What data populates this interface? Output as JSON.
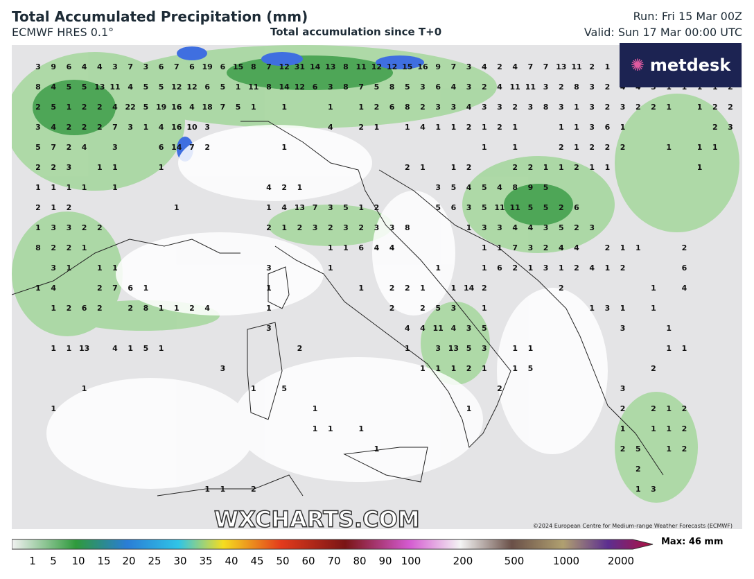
{
  "header": {
    "title": "Total Accumulated Precipitation (mm)",
    "model": "ECMWF HRES 0.1°",
    "subtitle": "Total accumulation since T+0",
    "run": "Run: Fri 15 Mar 00Z",
    "valid": "Valid: Sun 17 Mar 00:00 UTC"
  },
  "logo": "metdesk",
  "watermark": "WXCHARTS.COM",
  "copyright": "©2024 European Centre for Medium-range Weather Forecasts (ECMWF)",
  "legend": {
    "max": "Max: 46 mm",
    "ticks": [
      1,
      5,
      10,
      15,
      20,
      25,
      30,
      35,
      40,
      45,
      50,
      60,
      70,
      80,
      90,
      100,
      200,
      500,
      1000,
      2000
    ]
  },
  "grid_labels": [
    [
      3,
      9,
      6,
      4,
      4,
      3,
      7,
      3,
      6,
      7,
      6,
      19,
      6,
      15,
      8,
      7,
      12,
      31,
      14,
      13,
      8,
      11,
      12,
      12,
      15,
      16,
      9,
      7,
      3,
      4,
      2,
      4,
      7,
      7,
      13,
      11,
      2,
      1,
      1
    ],
    [
      8,
      4,
      5,
      5,
      13,
      11,
      4,
      5,
      5,
      12,
      12,
      6,
      5,
      1,
      11,
      8,
      14,
      12,
      6,
      3,
      8,
      7,
      5,
      8,
      5,
      3,
      6,
      4,
      3,
      2,
      4,
      11,
      11,
      3,
      2,
      8,
      3,
      2,
      4,
      4,
      3,
      1,
      1,
      1,
      1,
      2
    ],
    [
      2,
      5,
      1,
      2,
      2,
      4,
      22,
      5,
      19,
      16,
      4,
      18,
      7,
      5,
      1,
      null,
      1,
      null,
      null,
      1,
      null,
      1,
      2,
      6,
      8,
      2,
      3,
      3,
      4,
      3,
      3,
      2,
      3,
      8,
      3,
      1,
      3,
      2,
      3,
      2,
      2,
      1,
      null,
      1,
      2,
      2
    ],
    [
      3,
      4,
      2,
      2,
      2,
      7,
      3,
      1,
      4,
      16,
      10,
      3,
      null,
      null,
      null,
      null,
      null,
      null,
      null,
      4,
      null,
      2,
      1,
      null,
      1,
      4,
      1,
      1,
      2,
      1,
      2,
      1,
      null,
      null,
      1,
      1,
      3,
      6,
      1,
      null,
      null,
      null,
      null,
      null,
      2,
      3
    ],
    [
      5,
      7,
      2,
      4,
      null,
      3,
      null,
      null,
      6,
      14,
      7,
      2,
      null,
      null,
      null,
      null,
      1,
      null,
      null,
      null,
      null,
      null,
      null,
      null,
      null,
      null,
      null,
      null,
      null,
      1,
      null,
      1,
      null,
      null,
      2,
      1,
      2,
      2,
      2,
      null,
      null,
      1,
      null,
      1,
      1
    ],
    [
      2,
      2,
      3,
      null,
      1,
      1,
      null,
      null,
      1,
      null,
      null,
      null,
      null,
      null,
      null,
      null,
      null,
      null,
      null,
      null,
      null,
      null,
      null,
      null,
      2,
      1,
      null,
      1,
      2,
      null,
      null,
      2,
      2,
      1,
      1,
      2,
      1,
      1,
      null,
      null,
      null,
      null,
      null,
      1
    ],
    [
      1,
      1,
      1,
      1,
      null,
      1,
      null,
      null,
      null,
      null,
      null,
      null,
      null,
      null,
      null,
      4,
      2,
      1,
      null,
      null,
      null,
      null,
      null,
      null,
      null,
      null,
      3,
      5,
      4,
      5,
      4,
      8,
      9,
      5
    ],
    [
      2,
      1,
      2,
      null,
      null,
      null,
      null,
      null,
      null,
      1,
      null,
      null,
      null,
      null,
      null,
      1,
      4,
      13,
      7,
      3,
      5,
      1,
      2,
      null,
      null,
      null,
      5,
      6,
      3,
      5,
      11,
      11,
      5,
      5,
      2,
      6
    ],
    [
      1,
      3,
      3,
      2,
      2,
      null,
      null,
      null,
      null,
      null,
      null,
      null,
      null,
      null,
      null,
      2,
      1,
      2,
      3,
      2,
      3,
      2,
      3,
      3,
      8,
      null,
      null,
      null,
      1,
      3,
      3,
      4,
      4,
      3,
      5,
      2,
      3
    ],
    [
      8,
      2,
      2,
      1,
      null,
      null,
      null,
      null,
      null,
      null,
      null,
      null,
      null,
      null,
      null,
      null,
      null,
      null,
      null,
      1,
      1,
      6,
      4,
      4,
      null,
      null,
      null,
      null,
      null,
      1,
      1,
      7,
      3,
      2,
      4,
      4,
      null,
      2,
      1,
      1,
      null,
      null,
      2
    ],
    [
      null,
      3,
      1,
      null,
      1,
      1,
      null,
      null,
      null,
      null,
      null,
      null,
      null,
      null,
      null,
      3,
      null,
      null,
      null,
      1,
      null,
      null,
      null,
      null,
      null,
      null,
      1,
      null,
      null,
      1,
      6,
      2,
      1,
      3,
      1,
      2,
      4,
      1,
      2,
      null,
      null,
      null,
      6
    ],
    [
      1,
      4,
      null,
      null,
      2,
      7,
      6,
      1,
      null,
      null,
      null,
      null,
      null,
      null,
      null,
      1,
      null,
      null,
      null,
      null,
      null,
      1,
      null,
      2,
      2,
      1,
      null,
      1,
      14,
      2,
      null,
      null,
      null,
      null,
      2,
      null,
      null,
      null,
      null,
      null,
      1,
      null,
      4
    ],
    [
      null,
      1,
      2,
      6,
      2,
      null,
      2,
      8,
      1,
      1,
      2,
      4,
      null,
      null,
      null,
      1,
      null,
      null,
      null,
      null,
      null,
      null,
      null,
      2,
      null,
      2,
      5,
      3,
      null,
      1,
      null,
      null,
      null,
      null,
      null,
      null,
      1,
      3,
      1,
      null,
      1
    ],
    [
      null,
      null,
      null,
      null,
      null,
      null,
      null,
      null,
      null,
      null,
      null,
      null,
      null,
      null,
      null,
      3,
      null,
      null,
      null,
      null,
      null,
      null,
      null,
      null,
      4,
      4,
      11,
      4,
      3,
      5,
      null,
      null,
      null,
      null,
      null,
      null,
      null,
      null,
      3,
      null,
      null,
      1
    ],
    [
      null,
      1,
      1,
      13,
      null,
      4,
      1,
      5,
      1,
      null,
      null,
      null,
      null,
      null,
      null,
      null,
      null,
      2,
      null,
      null,
      null,
      null,
      null,
      null,
      1,
      null,
      3,
      13,
      5,
      3,
      null,
      1,
      1,
      null,
      null,
      null,
      null,
      null,
      null,
      null,
      null,
      1,
      1
    ],
    [
      null,
      null,
      null,
      null,
      null,
      null,
      null,
      null,
      null,
      null,
      null,
      null,
      3,
      null,
      null,
      null,
      null,
      null,
      null,
      null,
      null,
      null,
      null,
      null,
      null,
      1,
      1,
      1,
      2,
      1,
      null,
      1,
      5,
      null,
      null,
      null,
      null,
      null,
      null,
      null,
      2
    ],
    [
      null,
      null,
      null,
      1,
      null,
      null,
      null,
      null,
      null,
      null,
      null,
      null,
      null,
      null,
      1,
      null,
      5,
      null,
      null,
      null,
      null,
      null,
      null,
      null,
      null,
      null,
      null,
      null,
      null,
      null,
      2,
      null,
      null,
      null,
      null,
      null,
      null,
      null,
      3
    ],
    [
      null,
      1,
      null,
      null,
      null,
      null,
      null,
      null,
      null,
      null,
      null,
      null,
      null,
      null,
      null,
      null,
      null,
      null,
      1,
      null,
      null,
      null,
      null,
      null,
      null,
      null,
      null,
      null,
      1,
      null,
      null,
      null,
      null,
      null,
      null,
      null,
      null,
      null,
      2,
      null,
      2,
      1,
      2
    ],
    [
      null,
      null,
      null,
      null,
      null,
      null,
      null,
      null,
      null,
      null,
      null,
      null,
      null,
      null,
      null,
      null,
      null,
      null,
      1,
      1,
      null,
      1,
      null,
      null,
      null,
      null,
      null,
      null,
      null,
      null,
      null,
      null,
      null,
      null,
      null,
      null,
      null,
      null,
      1,
      null,
      1,
      1,
      2
    ],
    [
      null,
      null,
      null,
      null,
      null,
      null,
      null,
      null,
      null,
      null,
      null,
      null,
      null,
      null,
      null,
      null,
      null,
      null,
      null,
      null,
      null,
      null,
      1,
      null,
      null,
      null,
      null,
      null,
      null,
      null,
      null,
      null,
      null,
      null,
      null,
      null,
      null,
      null,
      2,
      5,
      null,
      1,
      2
    ],
    [
      null,
      null,
      null,
      null,
      null,
      null,
      null,
      null,
      null,
      null,
      null,
      null,
      null,
      null,
      null,
      null,
      null,
      null,
      null,
      null,
      null,
      null,
      null,
      null,
      null,
      null,
      null,
      null,
      null,
      null,
      null,
      null,
      null,
      null,
      null,
      null,
      null,
      null,
      null,
      2
    ],
    [
      null,
      null,
      null,
      null,
      null,
      null,
      null,
      null,
      null,
      null,
      null,
      1,
      1,
      null,
      2,
      null,
      null,
      null,
      null,
      null,
      null,
      null,
      null,
      null,
      null,
      null,
      null,
      null,
      null,
      null,
      null,
      null,
      null,
      null,
      null,
      null,
      null,
      null,
      null,
      1,
      3
    ]
  ]
}
